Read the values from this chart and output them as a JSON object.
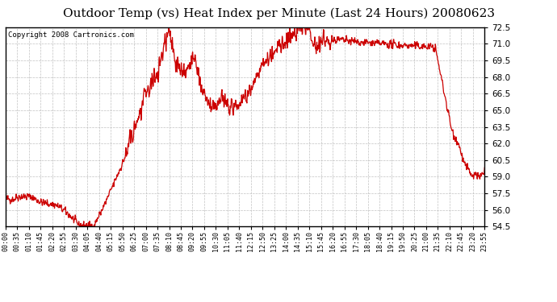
{
  "title": "Outdoor Temp (vs) Heat Index per Minute (Last 24 Hours) 20080623",
  "copyright": "Copyright 2008 Cartronics.com",
  "line_color": "#cc0000",
  "bg_color": "#ffffff",
  "grid_color": "#bbbbbb",
  "border_color": "#000000",
  "title_fontsize": 11,
  "ylim": [
    54.5,
    72.5
  ],
  "yticks": [
    54.5,
    56.0,
    57.5,
    59.0,
    60.5,
    62.0,
    63.5,
    65.0,
    66.5,
    68.0,
    69.5,
    71.0,
    72.5
  ],
  "xtick_labels": [
    "00:00",
    "00:35",
    "01:10",
    "01:45",
    "02:20",
    "02:55",
    "03:30",
    "04:05",
    "04:40",
    "05:15",
    "05:50",
    "06:25",
    "07:00",
    "07:35",
    "08:10",
    "08:45",
    "09:20",
    "09:55",
    "10:30",
    "11:05",
    "11:40",
    "12:15",
    "12:50",
    "13:25",
    "14:00",
    "14:35",
    "15:10",
    "15:45",
    "16:20",
    "16:55",
    "17:30",
    "18:05",
    "18:40",
    "19:15",
    "19:50",
    "20:25",
    "21:00",
    "21:35",
    "22:10",
    "22:45",
    "23:20",
    "23:55"
  ]
}
